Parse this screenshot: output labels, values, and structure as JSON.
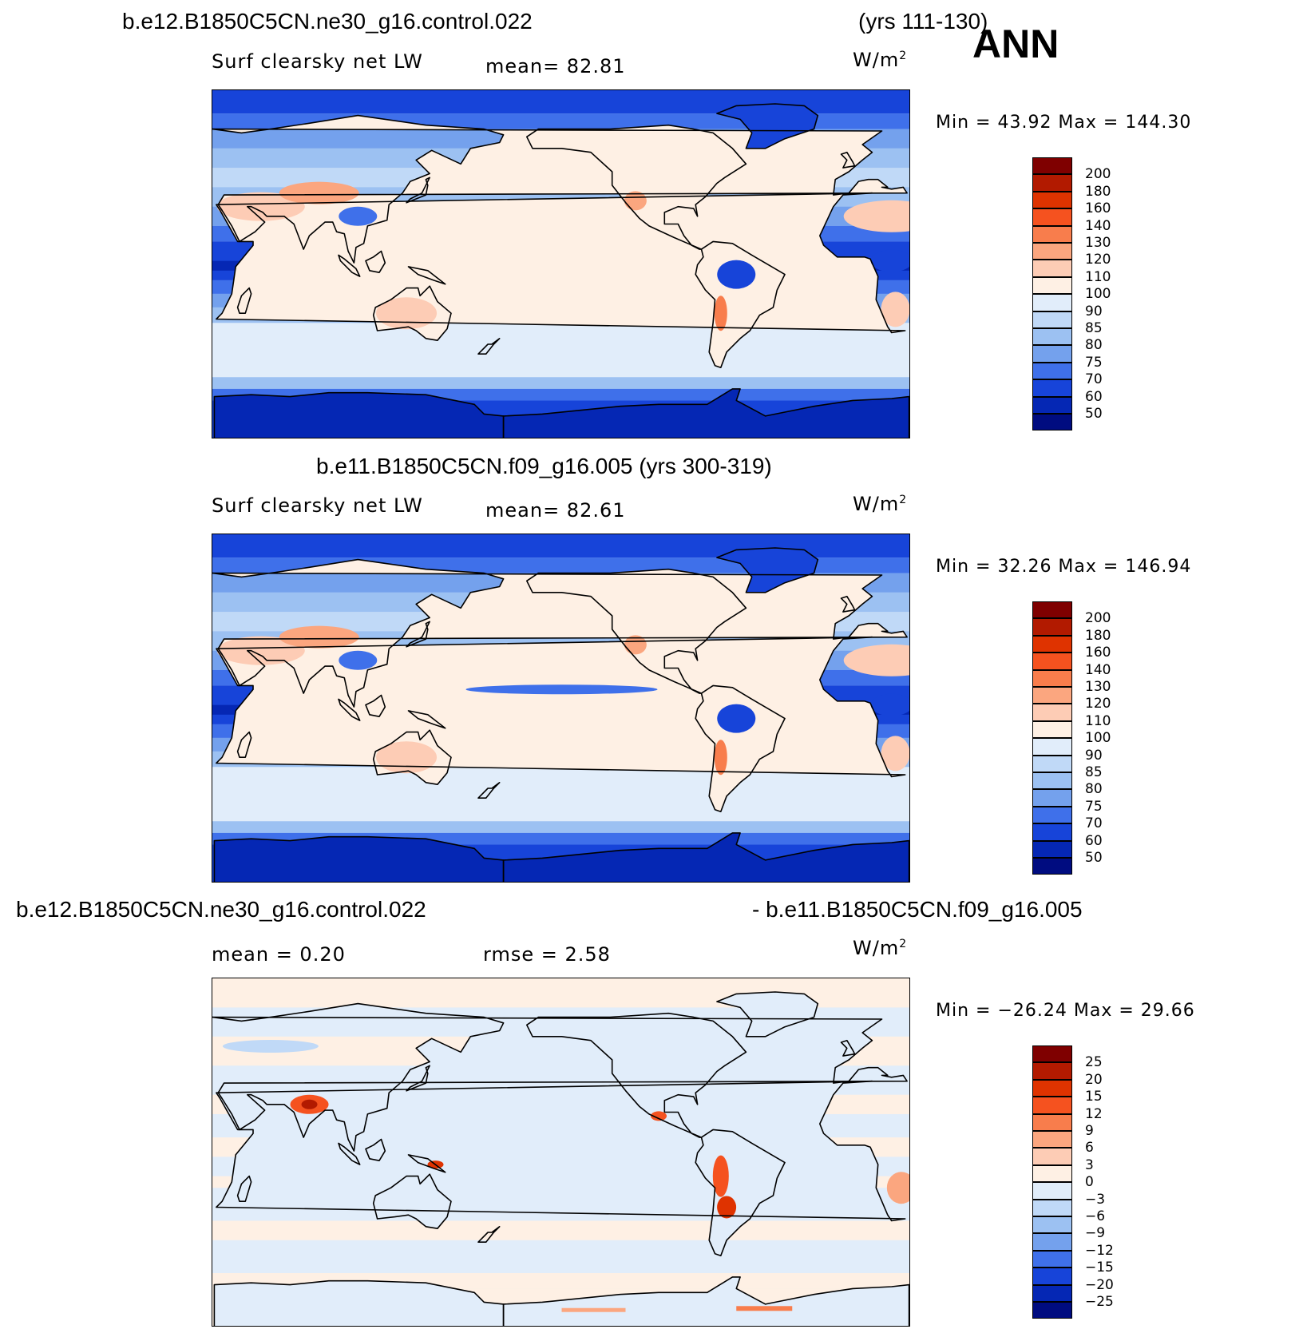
{
  "header": {
    "case_title": "b.e12.B1850C5CN.ne30_g16.control.022",
    "case_years": "(yrs 111-130)",
    "season": "ANN"
  },
  "panels": [
    {
      "title": "b.e12.B1850C5CN.ne30_g16.control.022",
      "variable": "Surf clearsky net LW",
      "stat_text": "mean=  82.81",
      "units": "W/m",
      "units_exp": "2",
      "minmax": "Min =   43.92 Max =  144.30"
    },
    {
      "title": "b.e11.B1850C5CN.f09_g16.005 (yrs 300-319)",
      "variable": "Surf clearsky net LW",
      "stat_text": "mean=  82.61",
      "units": "W/m",
      "units_exp": "2",
      "minmax": "Min =   32.26 Max =  146.94"
    },
    {
      "title_left": "b.e12.B1850C5CN.ne30_g16.control.022",
      "title_right": "- b.e11.B1850C5CN.f09_g16.005",
      "mean_text": "mean =    0.20",
      "rmse_text": "rmse =    2.58",
      "units": "W/m",
      "units_exp": "2",
      "minmax": "Min = −26.24 Max =   29.66"
    }
  ],
  "chart_data": [
    {
      "type": "heatmap",
      "title": "b.e12.B1850C5CN.ne30_g16.control.022 (yrs 111-130)",
      "variable": "Surf clearsky net LW",
      "units": "W/m2",
      "mean": 82.81,
      "min": 43.92,
      "max": 144.3,
      "levels": [
        "200",
        "180",
        "160",
        "140",
        "130",
        "120",
        "110",
        "100",
        "90",
        "85",
        "80",
        "75",
        "70",
        "60",
        "50"
      ],
      "colors": [
        "#7f0000",
        "#b21a00",
        "#df3300",
        "#f5521f",
        "#f87d4c",
        "#fba67f",
        "#fdccb5",
        "#fef0e4",
        "#e1edfa",
        "#c0d9f7",
        "#9cc1f2",
        "#74a1ed",
        "#3f70ea",
        "#1744d9",
        "#0527b4",
        "#000c80"
      ]
    },
    {
      "type": "heatmap",
      "title": "b.e11.B1850C5CN.f09_g16.005 (yrs 300-319)",
      "variable": "Surf clearsky net LW",
      "units": "W/m2",
      "mean": 82.61,
      "min": 32.26,
      "max": 146.94,
      "levels": [
        "200",
        "180",
        "160",
        "140",
        "130",
        "120",
        "110",
        "100",
        "90",
        "85",
        "80",
        "75",
        "70",
        "60",
        "50"
      ],
      "colors": [
        "#7f0000",
        "#b21a00",
        "#df3300",
        "#f5521f",
        "#f87d4c",
        "#fba67f",
        "#fdccb5",
        "#fef0e4",
        "#e1edfa",
        "#c0d9f7",
        "#9cc1f2",
        "#74a1ed",
        "#3f70ea",
        "#1744d9",
        "#0527b4",
        "#000c80"
      ]
    },
    {
      "type": "heatmap",
      "title": "b.e12.B1850C5CN.ne30_g16.control.022 - b.e11.B1850C5CN.f09_g16.005",
      "units": "W/m2",
      "mean": 0.2,
      "rmse": 2.58,
      "min": -26.24,
      "max": 29.66,
      "levels": [
        "25",
        "20",
        "15",
        "12",
        "9",
        "6",
        "3",
        "0",
        "−3",
        "−6",
        "−9",
        "−12",
        "−15",
        "−20",
        "−25"
      ],
      "colors": [
        "#7f0000",
        "#b21a00",
        "#df3300",
        "#f5521f",
        "#f87d4c",
        "#fba67f",
        "#fdccb5",
        "#fef0e4",
        "#e1edfa",
        "#c0d9f7",
        "#9cc1f2",
        "#74a1ed",
        "#3f70ea",
        "#1744d9",
        "#0527b4",
        "#000c80"
      ]
    }
  ]
}
